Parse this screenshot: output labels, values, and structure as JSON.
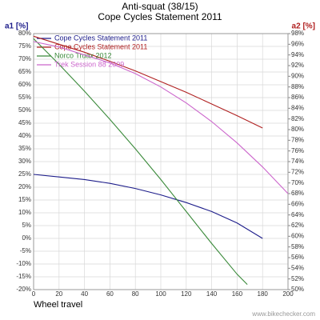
{
  "chart_data": {
    "type": "line",
    "title": "Anti-squat (38/15)",
    "subtitle": "Cope Cycles Statement 2011",
    "y_label": "a1 [%]",
    "y2_label": "a2 [%]",
    "x_label": "Wheel travel",
    "watermark": "www.bikechecker.com",
    "grid": true,
    "legend": "upper left",
    "xlim": [
      0,
      200
    ],
    "xticks": [
      0,
      20,
      40,
      60,
      80,
      100,
      120,
      140,
      160,
      180,
      200
    ],
    "ylim": [
      -20,
      80
    ],
    "yticks": [
      {
        "value": -20,
        "label": "-20%"
      },
      {
        "value": -15,
        "label": "-15%"
      },
      {
        "value": -10,
        "label": "-10%"
      },
      {
        "value": -5,
        "label": "-5%"
      },
      {
        "value": 0,
        "label": "0%"
      },
      {
        "value": 5,
        "label": "5%"
      },
      {
        "value": 10,
        "label": "10%"
      },
      {
        "value": 15,
        "label": "15%"
      },
      {
        "value": 20,
        "label": "20%"
      },
      {
        "value": 25,
        "label": "25%"
      },
      {
        "value": 30,
        "label": "30%"
      },
      {
        "value": 35,
        "label": "35%"
      },
      {
        "value": 40,
        "label": "40%"
      },
      {
        "value": 45,
        "label": "45%"
      },
      {
        "value": 50,
        "label": "50%"
      },
      {
        "value": 55,
        "label": "55%"
      },
      {
        "value": 60,
        "label": "60%"
      },
      {
        "value": 65,
        "label": "65%"
      },
      {
        "value": 70,
        "label": "70%"
      },
      {
        "value": 75,
        "label": "75%"
      },
      {
        "value": 80,
        "label": "80%"
      }
    ],
    "y2lim": [
      50,
      98
    ],
    "y2ticks": [
      {
        "value": 50,
        "label": "50%"
      },
      {
        "value": 52,
        "label": "52%"
      },
      {
        "value": 54,
        "label": "54%"
      },
      {
        "value": 56,
        "label": "56%"
      },
      {
        "value": 58,
        "label": "58%"
      },
      {
        "value": 60,
        "label": "60%"
      },
      {
        "value": 62,
        "label": "62%"
      },
      {
        "value": 64,
        "label": "64%"
      },
      {
        "value": 66,
        "label": "66%"
      },
      {
        "value": 68,
        "label": "68%"
      },
      {
        "value": 70,
        "label": "70%"
      },
      {
        "value": 72,
        "label": "72%"
      },
      {
        "value": 74,
        "label": "74%"
      },
      {
        "value": 76,
        "label": "76%"
      },
      {
        "value": 78,
        "label": "78%"
      },
      {
        "value": 80,
        "label": "80%"
      },
      {
        "value": 82,
        "label": "82%"
      },
      {
        "value": 84,
        "label": "84%"
      },
      {
        "value": 86,
        "label": "86%"
      },
      {
        "value": 88,
        "label": "88%"
      },
      {
        "value": 90,
        "label": "90%"
      },
      {
        "value": 92,
        "label": "92%"
      },
      {
        "value": 94,
        "label": "94%"
      },
      {
        "value": 96,
        "label": "96%"
      },
      {
        "value": 98,
        "label": "98%"
      }
    ],
    "series": [
      {
        "name": "Cope Cycles Statement 2011",
        "color": "#1c1c8a",
        "x": [
          0,
          20,
          40,
          60,
          80,
          100,
          120,
          140,
          160,
          180
        ],
        "values": [
          25,
          24,
          23,
          21.5,
          19.5,
          17,
          14,
          10.5,
          6,
          0
        ]
      },
      {
        "name": "Cope Cycles Statement 2011",
        "color": "#b02020",
        "axis": "y2",
        "x": [
          0,
          20,
          40,
          60,
          80,
          100,
          120,
          140,
          160,
          180
        ],
        "values": [
          97.5,
          96,
          94.5,
          92.8,
          91,
          89,
          87,
          84.8,
          82.6,
          80.3
        ]
      },
      {
        "name": "Norco Truax 2012",
        "color": "#3a8a3a",
        "x": [
          0,
          20,
          40,
          60,
          80,
          100,
          120,
          140,
          160,
          168
        ],
        "values": [
          78,
          68,
          57.5,
          46.5,
          35,
          23,
          10.5,
          -2,
          -14,
          -18
        ]
      },
      {
        "name": "Trek Session 88 2009",
        "color": "#cc66cc",
        "axis": "y2",
        "x": [
          0,
          20,
          40,
          60,
          80,
          100,
          120,
          140,
          160,
          180,
          200
        ],
        "values": [
          96.5,
          95.5,
          94,
          92.5,
          90.5,
          88,
          85,
          81.5,
          77.5,
          73,
          68
        ]
      }
    ]
  }
}
